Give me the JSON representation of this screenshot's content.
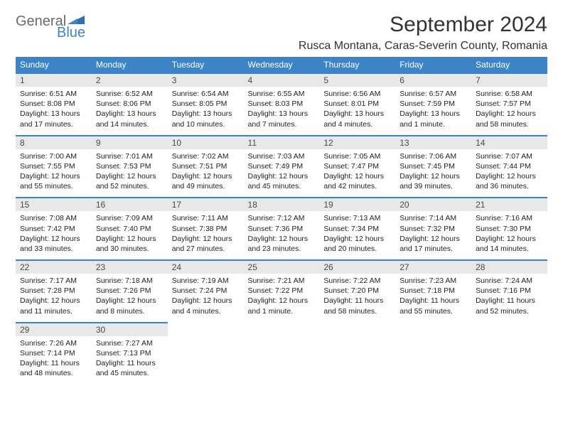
{
  "brand": {
    "general": "General",
    "blue": "Blue"
  },
  "title": "September 2024",
  "location": "Rusca Montana, Caras-Severin County, Romania",
  "colors": {
    "accent": "#3d84c6",
    "header_bg": "#3d84c6",
    "daynum_bg": "#e8e8e8",
    "text": "#222222"
  },
  "weekdays": [
    "Sunday",
    "Monday",
    "Tuesday",
    "Wednesday",
    "Thursday",
    "Friday",
    "Saturday"
  ],
  "weeks": [
    [
      {
        "n": "1",
        "sr": "6:51 AM",
        "ss": "8:08 PM",
        "dl": "13 hours and 17 minutes."
      },
      {
        "n": "2",
        "sr": "6:52 AM",
        "ss": "8:06 PM",
        "dl": "13 hours and 14 minutes."
      },
      {
        "n": "3",
        "sr": "6:54 AM",
        "ss": "8:05 PM",
        "dl": "13 hours and 10 minutes."
      },
      {
        "n": "4",
        "sr": "6:55 AM",
        "ss": "8:03 PM",
        "dl": "13 hours and 7 minutes."
      },
      {
        "n": "5",
        "sr": "6:56 AM",
        "ss": "8:01 PM",
        "dl": "13 hours and 4 minutes."
      },
      {
        "n": "6",
        "sr": "6:57 AM",
        "ss": "7:59 PM",
        "dl": "13 hours and 1 minute."
      },
      {
        "n": "7",
        "sr": "6:58 AM",
        "ss": "7:57 PM",
        "dl": "12 hours and 58 minutes."
      }
    ],
    [
      {
        "n": "8",
        "sr": "7:00 AM",
        "ss": "7:55 PM",
        "dl": "12 hours and 55 minutes."
      },
      {
        "n": "9",
        "sr": "7:01 AM",
        "ss": "7:53 PM",
        "dl": "12 hours and 52 minutes."
      },
      {
        "n": "10",
        "sr": "7:02 AM",
        "ss": "7:51 PM",
        "dl": "12 hours and 49 minutes."
      },
      {
        "n": "11",
        "sr": "7:03 AM",
        "ss": "7:49 PM",
        "dl": "12 hours and 45 minutes."
      },
      {
        "n": "12",
        "sr": "7:05 AM",
        "ss": "7:47 PM",
        "dl": "12 hours and 42 minutes."
      },
      {
        "n": "13",
        "sr": "7:06 AM",
        "ss": "7:45 PM",
        "dl": "12 hours and 39 minutes."
      },
      {
        "n": "14",
        "sr": "7:07 AM",
        "ss": "7:44 PM",
        "dl": "12 hours and 36 minutes."
      }
    ],
    [
      {
        "n": "15",
        "sr": "7:08 AM",
        "ss": "7:42 PM",
        "dl": "12 hours and 33 minutes."
      },
      {
        "n": "16",
        "sr": "7:09 AM",
        "ss": "7:40 PM",
        "dl": "12 hours and 30 minutes."
      },
      {
        "n": "17",
        "sr": "7:11 AM",
        "ss": "7:38 PM",
        "dl": "12 hours and 27 minutes."
      },
      {
        "n": "18",
        "sr": "7:12 AM",
        "ss": "7:36 PM",
        "dl": "12 hours and 23 minutes."
      },
      {
        "n": "19",
        "sr": "7:13 AM",
        "ss": "7:34 PM",
        "dl": "12 hours and 20 minutes."
      },
      {
        "n": "20",
        "sr": "7:14 AM",
        "ss": "7:32 PM",
        "dl": "12 hours and 17 minutes."
      },
      {
        "n": "21",
        "sr": "7:16 AM",
        "ss": "7:30 PM",
        "dl": "12 hours and 14 minutes."
      }
    ],
    [
      {
        "n": "22",
        "sr": "7:17 AM",
        "ss": "7:28 PM",
        "dl": "12 hours and 11 minutes."
      },
      {
        "n": "23",
        "sr": "7:18 AM",
        "ss": "7:26 PM",
        "dl": "12 hours and 8 minutes."
      },
      {
        "n": "24",
        "sr": "7:19 AM",
        "ss": "7:24 PM",
        "dl": "12 hours and 4 minutes."
      },
      {
        "n": "25",
        "sr": "7:21 AM",
        "ss": "7:22 PM",
        "dl": "12 hours and 1 minute."
      },
      {
        "n": "26",
        "sr": "7:22 AM",
        "ss": "7:20 PM",
        "dl": "11 hours and 58 minutes."
      },
      {
        "n": "27",
        "sr": "7:23 AM",
        "ss": "7:18 PM",
        "dl": "11 hours and 55 minutes."
      },
      {
        "n": "28",
        "sr": "7:24 AM",
        "ss": "7:16 PM",
        "dl": "11 hours and 52 minutes."
      }
    ],
    [
      {
        "n": "29",
        "sr": "7:26 AM",
        "ss": "7:14 PM",
        "dl": "11 hours and 48 minutes."
      },
      {
        "n": "30",
        "sr": "7:27 AM",
        "ss": "7:13 PM",
        "dl": "11 hours and 45 minutes."
      },
      null,
      null,
      null,
      null,
      null
    ]
  ],
  "labels": {
    "sunrise": "Sunrise:",
    "sunset": "Sunset:",
    "daylight": "Daylight:"
  }
}
